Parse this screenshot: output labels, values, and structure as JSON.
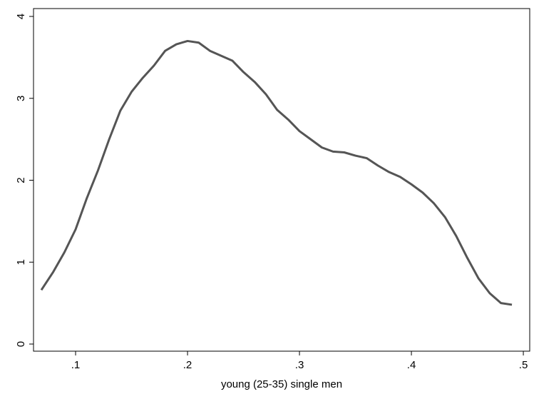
{
  "chart_data": {
    "type": "line",
    "xlabel": "young (25-35) single men",
    "x": [
      0.0694,
      0.08,
      0.09,
      0.1,
      0.11,
      0.12,
      0.13,
      0.14,
      0.15,
      0.16,
      0.17,
      0.18,
      0.19,
      0.2,
      0.21,
      0.22,
      0.23,
      0.24,
      0.25,
      0.26,
      0.27,
      0.28,
      0.29,
      0.3,
      0.31,
      0.32,
      0.33,
      0.34,
      0.35,
      0.36,
      0.37,
      0.38,
      0.39,
      0.4,
      0.41,
      0.42,
      0.43,
      0.44,
      0.45,
      0.46,
      0.47,
      0.48,
      0.4898
    ],
    "series": [
      {
        "color": "#555555",
        "values": [
          0.66,
          0.88,
          1.12,
          1.4,
          1.78,
          2.12,
          2.5,
          2.85,
          3.08,
          3.25,
          3.4,
          3.58,
          3.66,
          3.7,
          3.68,
          3.58,
          3.52,
          3.46,
          3.32,
          3.2,
          3.05,
          2.86,
          2.74,
          2.6,
          2.5,
          2.4,
          2.35,
          2.34,
          2.3,
          2.27,
          2.18,
          2.1,
          2.04,
          1.95,
          1.85,
          1.72,
          1.55,
          1.32,
          1.05,
          0.8,
          0.62,
          0.5,
          0.48
        ]
      }
    ],
    "xlim": [
      0.0624,
      0.5057
    ],
    "ylim": [
      -0.087,
      4.096
    ],
    "xticks": [
      {
        "value": 0.1,
        "label": ".1"
      },
      {
        "value": 0.2,
        "label": ".2"
      },
      {
        "value": 0.3,
        "label": ".3"
      },
      {
        "value": 0.4,
        "label": ".4"
      },
      {
        "value": 0.5,
        "label": ".5"
      }
    ],
    "yticks": [
      0,
      1,
      2,
      3,
      4
    ]
  }
}
